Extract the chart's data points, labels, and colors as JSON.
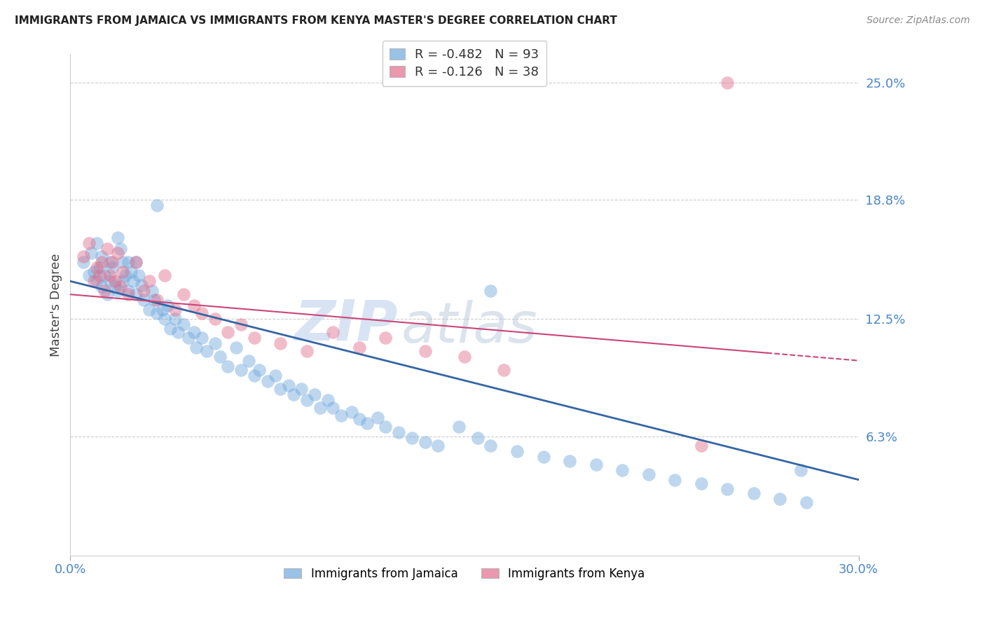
{
  "title": "IMMIGRANTS FROM JAMAICA VS IMMIGRANTS FROM KENYA MASTER'S DEGREE CORRELATION CHART",
  "source": "Source: ZipAtlas.com",
  "ylabel": "Master's Degree",
  "x_min": 0.0,
  "x_max": 0.3,
  "y_min": 0.0,
  "y_max": 0.265,
  "y_ticks": [
    0.063,
    0.125,
    0.188,
    0.25
  ],
  "y_tick_labels": [
    "6.3%",
    "12.5%",
    "18.8%",
    "25.0%"
  ],
  "jamaica_color": "#6fa8dc",
  "kenya_color": "#e06c8a",
  "jamaica_line_color": "#3465a4",
  "kenya_line_color": "#cc4477",
  "jamaica_R": -0.482,
  "jamaica_N": 93,
  "kenya_R": -0.126,
  "kenya_N": 38,
  "legend_label_jamaica": "Immigrants from Jamaica",
  "legend_label_kenya": "Immigrants from Kenya",
  "watermark_zip": "ZIP",
  "watermark_atlas": "atlas",
  "jamaica_line_x0": 0.0,
  "jamaica_line_y0": 0.145,
  "jamaica_line_x1": 0.3,
  "jamaica_line_y1": 0.04,
  "kenya_line_x0": 0.0,
  "kenya_line_y0": 0.138,
  "kenya_line_x1": 0.3,
  "kenya_line_y1": 0.103,
  "jamaica_x": [
    0.005,
    0.007,
    0.008,
    0.009,
    0.01,
    0.01,
    0.011,
    0.012,
    0.012,
    0.013,
    0.014,
    0.015,
    0.015,
    0.016,
    0.017,
    0.018,
    0.018,
    0.019,
    0.02,
    0.02,
    0.021,
    0.022,
    0.022,
    0.023,
    0.024,
    0.025,
    0.025,
    0.026,
    0.027,
    0.028,
    0.03,
    0.031,
    0.032,
    0.033,
    0.035,
    0.036,
    0.037,
    0.038,
    0.04,
    0.041,
    0.043,
    0.045,
    0.047,
    0.048,
    0.05,
    0.052,
    0.055,
    0.057,
    0.06,
    0.063,
    0.065,
    0.068,
    0.07,
    0.072,
    0.075,
    0.078,
    0.08,
    0.083,
    0.085,
    0.088,
    0.09,
    0.093,
    0.095,
    0.098,
    0.1,
    0.103,
    0.107,
    0.11,
    0.113,
    0.117,
    0.12,
    0.125,
    0.13,
    0.135,
    0.14,
    0.148,
    0.155,
    0.16,
    0.17,
    0.18,
    0.19,
    0.2,
    0.21,
    0.22,
    0.23,
    0.24,
    0.25,
    0.26,
    0.27,
    0.28,
    0.033,
    0.16,
    0.278
  ],
  "jamaica_y": [
    0.155,
    0.148,
    0.16,
    0.15,
    0.165,
    0.145,
    0.152,
    0.142,
    0.158,
    0.148,
    0.138,
    0.155,
    0.145,
    0.152,
    0.142,
    0.168,
    0.14,
    0.162,
    0.155,
    0.145,
    0.148,
    0.155,
    0.14,
    0.15,
    0.145,
    0.155,
    0.138,
    0.148,
    0.143,
    0.135,
    0.13,
    0.14,
    0.135,
    0.128,
    0.13,
    0.125,
    0.132,
    0.12,
    0.125,
    0.118,
    0.122,
    0.115,
    0.118,
    0.11,
    0.115,
    0.108,
    0.112,
    0.105,
    0.1,
    0.11,
    0.098,
    0.103,
    0.095,
    0.098,
    0.092,
    0.095,
    0.088,
    0.09,
    0.085,
    0.088,
    0.082,
    0.085,
    0.078,
    0.082,
    0.078,
    0.074,
    0.076,
    0.072,
    0.07,
    0.073,
    0.068,
    0.065,
    0.062,
    0.06,
    0.058,
    0.068,
    0.062,
    0.058,
    0.055,
    0.052,
    0.05,
    0.048,
    0.045,
    0.043,
    0.04,
    0.038,
    0.035,
    0.033,
    0.03,
    0.028,
    0.185,
    0.14,
    0.045
  ],
  "kenya_x": [
    0.005,
    0.007,
    0.009,
    0.01,
    0.011,
    0.012,
    0.013,
    0.014,
    0.015,
    0.016,
    0.017,
    0.018,
    0.019,
    0.02,
    0.022,
    0.025,
    0.028,
    0.03,
    0.033,
    0.036,
    0.04,
    0.043,
    0.047,
    0.05,
    0.055,
    0.06,
    0.065,
    0.07,
    0.08,
    0.09,
    0.1,
    0.11,
    0.12,
    0.135,
    0.15,
    0.165,
    0.24,
    0.25
  ],
  "kenya_y": [
    0.158,
    0.165,
    0.145,
    0.152,
    0.148,
    0.155,
    0.14,
    0.162,
    0.148,
    0.155,
    0.145,
    0.16,
    0.142,
    0.15,
    0.138,
    0.155,
    0.14,
    0.145,
    0.135,
    0.148,
    0.13,
    0.138,
    0.132,
    0.128,
    0.125,
    0.118,
    0.122,
    0.115,
    0.112,
    0.108,
    0.118,
    0.11,
    0.115,
    0.108,
    0.105,
    0.098,
    0.058,
    0.25
  ]
}
